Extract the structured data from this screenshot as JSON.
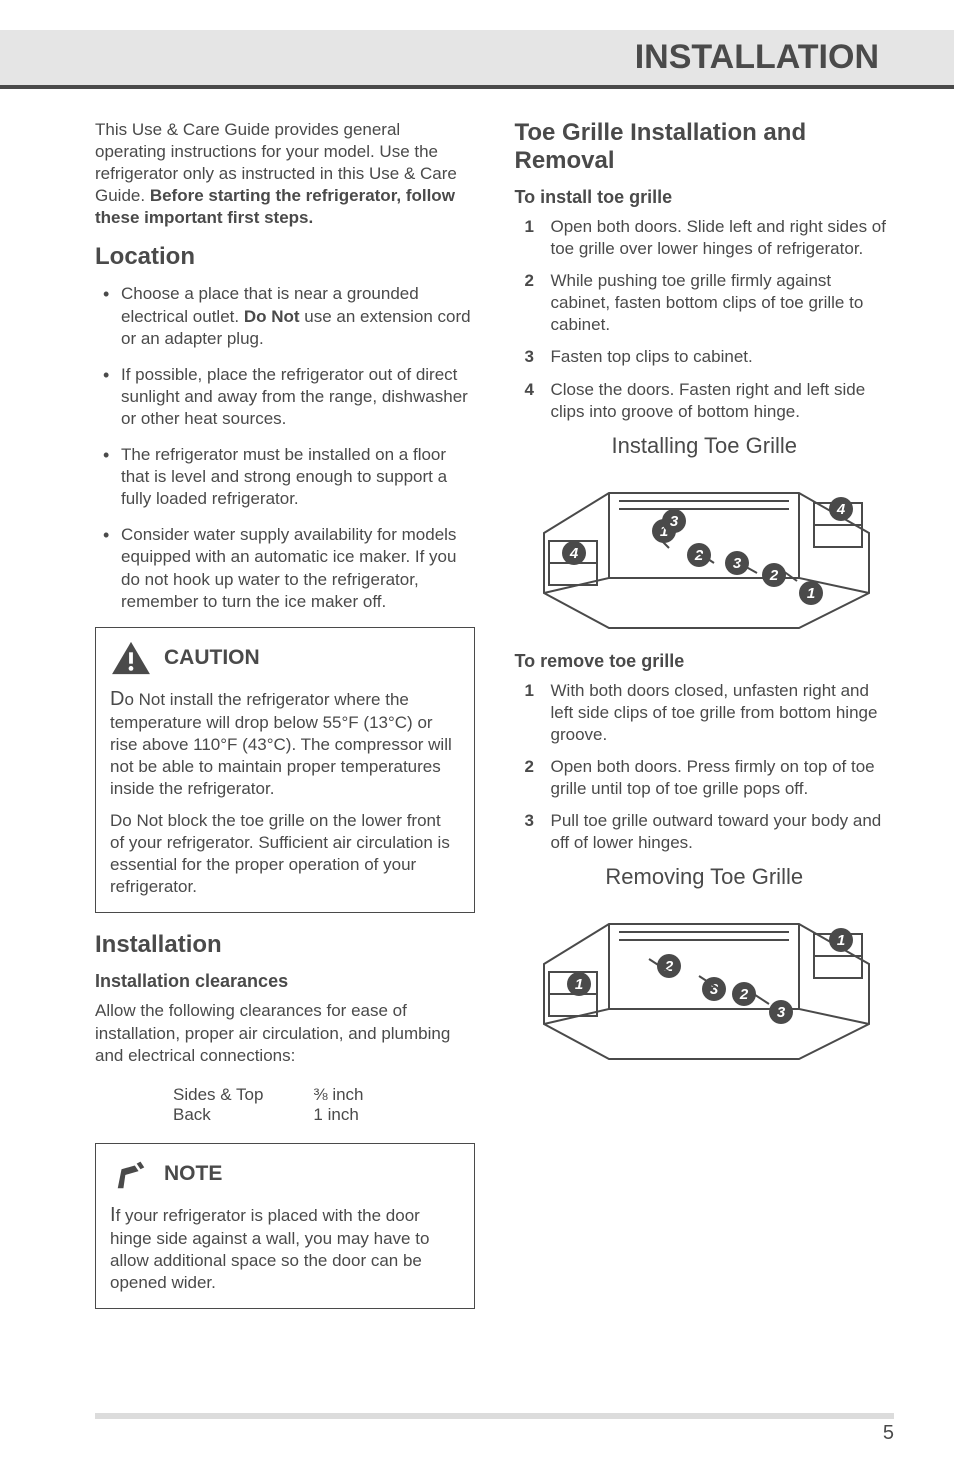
{
  "header": {
    "title": "INSTALLATION"
  },
  "colors": {
    "textGray": "#4a4a4a",
    "headerBg": "#e5e5e5",
    "footerBar": "#dcdcdc",
    "iconFill": "#4a4a4a"
  },
  "left": {
    "intro_plain": "This Use & Care Guide provides general operating instructions for your model. Use the refrigerator only as instructed in this Use & Care Guide. ",
    "intro_bold": "Before starting the refrigerator, follow these important first steps.",
    "location_title": "Location",
    "location_bullets": [
      {
        "pre": "Choose a place that is near a grounded electrical outlet. ",
        "bold": "Do Not",
        "post": " use an extension cord or an adapter plug."
      },
      {
        "pre": "If possible, place the refrigerator out of direct sunlight and away from the range, dishwasher or other heat sources.",
        "bold": "",
        "post": ""
      },
      {
        "pre": "The refrigerator must be installed on a floor that is level and strong enough to support a fully loaded refrigerator.",
        "bold": "",
        "post": ""
      },
      {
        "pre": "Consider water supply availability for models equipped with an automatic ice maker. If you do not hook up water to the refrigerator, remember to turn the ice maker off.",
        "bold": "",
        "post": ""
      }
    ],
    "caution_title": "CAUTION",
    "caution_p1_drop": "D",
    "caution_p1": "o Not install the refrigerator where the temperature will drop below 55°F (13°C) or rise above 110°F (43°C). The compressor will not be able to maintain proper temperatures inside the refrigerator.",
    "caution_p2": "Do Not block the toe grille on the lower front of your refrigerator. Sufficient air circulation is essential for the proper operation of your refrigerator.",
    "install_title": "Installation",
    "install_sub": "Installation clearances",
    "install_para": "Allow the following clearances for ease of installation, proper air circulation, and plumbing and electrical connections:",
    "clearances": {
      "labels": "Sides & Top\nBack",
      "values": "⅜ inch\n1 inch"
    },
    "note_title": "NOTE",
    "note_drop": "I",
    "note_body": "f your refrigerator is placed with the door hinge side against a wall, you may have to allow additional space so the door can be opened wider."
  },
  "right": {
    "toe_title": "Toe Grille Installation and Removal",
    "install_sub": "To install toe grille",
    "install_steps": [
      {
        "n": "1",
        "t": "Open both doors. Slide left and right sides of toe grille over lower hinges of refrigerator."
      },
      {
        "n": "2",
        "t": "While pushing toe grille firmly against cabinet, fasten bottom clips of toe grille to cabinet."
      },
      {
        "n": "3",
        "t": "Fasten top clips to cabinet."
      },
      {
        "n": "4",
        "t": "Close the doors. Fasten right and left side clips into groove of bottom hinge."
      }
    ],
    "diagram1_title": "Installing Toe Grille",
    "diagram1_numbers": [
      "1",
      "2",
      "3",
      "4"
    ],
    "remove_sub": "To remove toe grille",
    "remove_steps": [
      {
        "n": "1",
        "t": "With both doors closed, unfasten right and left side clips of toe grille from bottom hinge groove."
      },
      {
        "n": "2",
        "t": "Open both doors. Press firmly on top of toe grille until top of toe grille pops off."
      },
      {
        "n": "3",
        "t": "Pull toe grille outward toward your body and off of lower hinges."
      }
    ],
    "diagram2_title": "Removing Toe Grille",
    "diagram2_numbers": [
      "1",
      "2",
      "3"
    ]
  },
  "pageNumber": "5"
}
